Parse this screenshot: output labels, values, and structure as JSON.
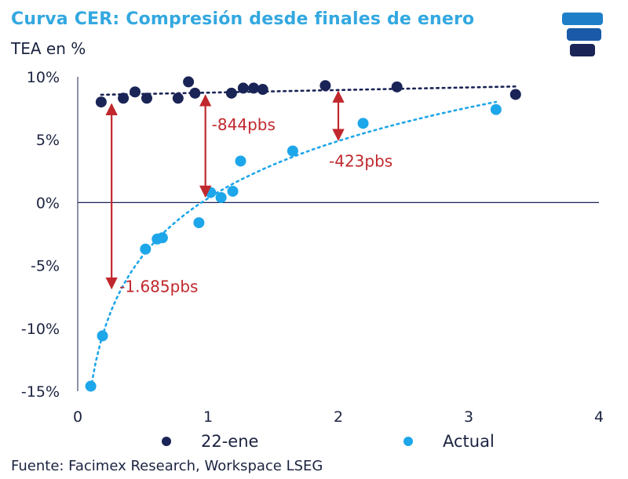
{
  "header": {
    "title": "Curva CER: Compresión desde finales de enero",
    "subtitle": "TEA en %"
  },
  "footer": {
    "source": "Fuente: Facimex Research, Workspace LSEG"
  },
  "colors": {
    "title": "#33a8e0",
    "series_jan": "#1a2456",
    "series_now": "#1ea6ea",
    "annotation": "#c0282d",
    "axis": "#1a2456"
  },
  "chart_data": {
    "type": "scatter",
    "x_ticks": [
      "0",
      "1",
      "2",
      "3",
      "4"
    ],
    "y_ticks": [
      "10%",
      "5%",
      "0%",
      "-5%",
      "-10%",
      "-15%"
    ],
    "xlim": [
      0,
      4
    ],
    "ylim": [
      -15,
      10
    ],
    "grid": false,
    "legend_position": "bottom",
    "series": [
      {
        "name": "22-ene",
        "color": "#1a2456",
        "trendline": "dotted",
        "points": [
          [
            0.18,
            8.0
          ],
          [
            0.35,
            8.3
          ],
          [
            0.44,
            8.8
          ],
          [
            0.53,
            8.3
          ],
          [
            0.77,
            8.3
          ],
          [
            0.85,
            9.6
          ],
          [
            0.9,
            8.7
          ],
          [
            1.18,
            8.7
          ],
          [
            1.27,
            9.1
          ],
          [
            1.35,
            9.1
          ],
          [
            1.42,
            9.0
          ],
          [
            1.9,
            9.3
          ],
          [
            2.45,
            9.2
          ],
          [
            3.36,
            8.6
          ]
        ]
      },
      {
        "name": "Actual",
        "color": "#1ea6ea",
        "trendline": "dotted-log",
        "points": [
          [
            0.1,
            -14.6
          ],
          [
            0.19,
            -10.6
          ],
          [
            0.52,
            -3.7
          ],
          [
            0.61,
            -2.9
          ],
          [
            0.65,
            -2.8
          ],
          [
            0.93,
            -1.6
          ],
          [
            1.02,
            0.8
          ],
          [
            1.1,
            0.4
          ],
          [
            1.19,
            0.9
          ],
          [
            1.25,
            3.3
          ],
          [
            1.65,
            4.1
          ],
          [
            2.19,
            6.3
          ],
          [
            3.21,
            7.4
          ]
        ]
      }
    ],
    "annotations": [
      {
        "label": "-1.685pbs",
        "x": 0.26,
        "from_y": 8.0,
        "to_y": -7.0
      },
      {
        "label": "-844pbs",
        "x": 0.98,
        "from_y": 8.7,
        "to_y": 0.3
      },
      {
        "label": "-423pbs",
        "x": 2.0,
        "from_y": 9.0,
        "to_y": 4.8
      }
    ]
  }
}
